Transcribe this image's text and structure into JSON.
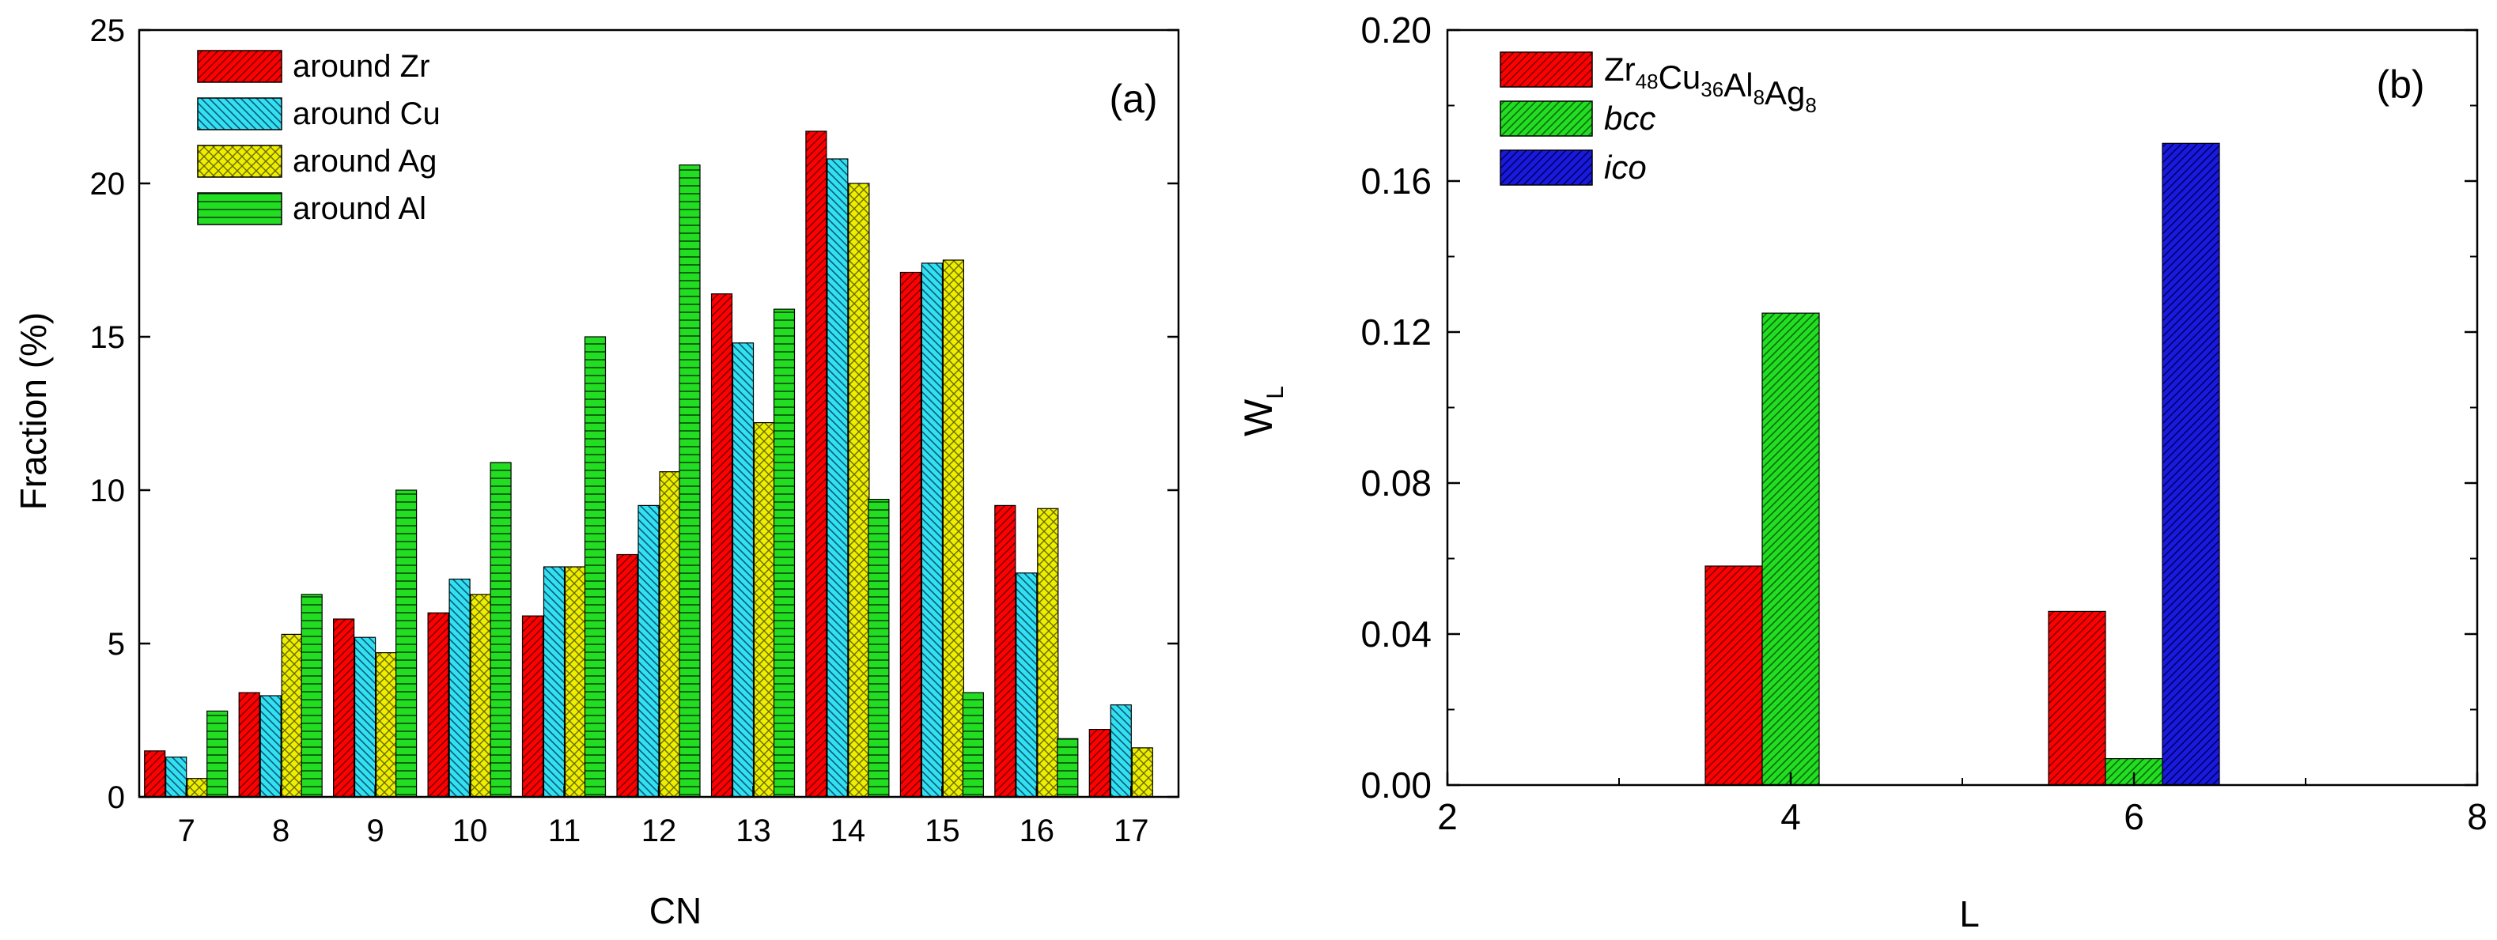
{
  "chart_data": [
    {
      "panel": "(a)",
      "type": "bar",
      "xlabel": "CN",
      "ylabel": "Fraction (%)",
      "ylim": [
        0,
        25
      ],
      "yticks": [
        "0",
        "5",
        "10",
        "15",
        "20",
        "25"
      ],
      "categories": [
        "7",
        "8",
        "9",
        "10",
        "11",
        "12",
        "13",
        "14",
        "15",
        "16",
        "17"
      ],
      "legend_position": "top-left",
      "series": [
        {
          "name": "around Zr",
          "color": "#ff0000",
          "pattern": "diag",
          "values": [
            1.5,
            3.4,
            5.8,
            6.0,
            5.9,
            7.9,
            16.4,
            21.7,
            17.1,
            9.5,
            2.2
          ]
        },
        {
          "name": "around Cu",
          "color": "#33e0f0",
          "pattern": "diag-rev",
          "values": [
            1.3,
            3.3,
            5.2,
            7.1,
            7.5,
            9.5,
            14.8,
            20.8,
            17.4,
            7.3,
            3.0
          ]
        },
        {
          "name": "around Ag",
          "color": "#eeee00",
          "pattern": "cross",
          "values": [
            0.6,
            5.3,
            4.7,
            6.6,
            7.5,
            10.6,
            12.2,
            20.0,
            17.5,
            9.4,
            1.6
          ]
        },
        {
          "name": "around Al",
          "color": "#22dd22",
          "pattern": "horiz",
          "values": [
            2.8,
            6.6,
            10.0,
            10.9,
            15.0,
            20.6,
            15.9,
            9.7,
            3.4,
            1.9,
            null
          ]
        }
      ]
    },
    {
      "panel": "(b)",
      "type": "bar",
      "xlabel": "L",
      "ylabel": "W",
      "ylabel_subscript": "L",
      "xlim": [
        2,
        8
      ],
      "ylim": [
        0,
        0.2
      ],
      "xticks": [
        "2",
        "4",
        "6",
        "8"
      ],
      "yticks": [
        "0.00",
        "0.04",
        "0.08",
        "0.12",
        "0.16",
        "0.20"
      ],
      "categories": [
        4,
        6
      ],
      "legend_position": "top-left",
      "series": [
        {
          "name": "Zr48Cu36Al8Ag8",
          "label_parts": [
            [
              "Zr",
              "48"
            ],
            [
              "Cu",
              "36"
            ],
            [
              "Al",
              "8"
            ],
            [
              "Ag",
              "8"
            ]
          ],
          "color": "#ff0000",
          "pattern": "diag",
          "values": [
            0.058,
            0.046
          ]
        },
        {
          "name": "bcc",
          "italic": true,
          "color": "#22dd22",
          "pattern": "diag",
          "values": [
            0.125,
            0.007
          ]
        },
        {
          "name": "ico",
          "italic": true,
          "color": "#1a1add",
          "pattern": "diag",
          "values": [
            null,
            0.17
          ]
        }
      ]
    }
  ]
}
